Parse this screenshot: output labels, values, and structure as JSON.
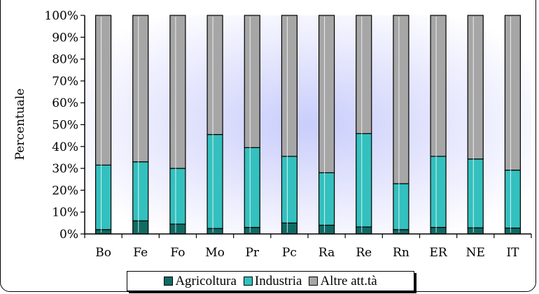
{
  "chart_data": {
    "type": "bar",
    "stacked": true,
    "categories": [
      "Bo",
      "Fe",
      "Fo",
      "Mo",
      "Pr",
      "Pc",
      "Ra",
      "Re",
      "Rn",
      "ER",
      "NE",
      "IT"
    ],
    "series": [
      {
        "name": "Agricoltura",
        "color": "#0f6b64",
        "values": [
          2,
          6,
          4.5,
          2.5,
          3,
          5,
          4,
          3.2,
          2,
          3,
          2.8,
          2.7
        ]
      },
      {
        "name": "Industria",
        "color": "#33c0be",
        "values": [
          29.5,
          27,
          25.5,
          43,
          36.5,
          30.5,
          24,
          42.7,
          21,
          32.5,
          31.5,
          26.5
        ]
      },
      {
        "name": "Altre att.tà",
        "color": "#a6a6a6",
        "values": [
          68.5,
          67,
          70,
          54.5,
          60.5,
          64.5,
          72,
          54.1,
          77,
          64.5,
          65.7,
          70.8
        ]
      }
    ],
    "yticks": [
      "0%",
      "10%",
      "20%",
      "30%",
      "40%",
      "50%",
      "60%",
      "70%",
      "80%",
      "90%",
      "100%"
    ],
    "ylabel": "Percentuale",
    "xlabel": "",
    "ylim": [
      0,
      100
    ],
    "grid": false,
    "legend_position": "bottom"
  }
}
